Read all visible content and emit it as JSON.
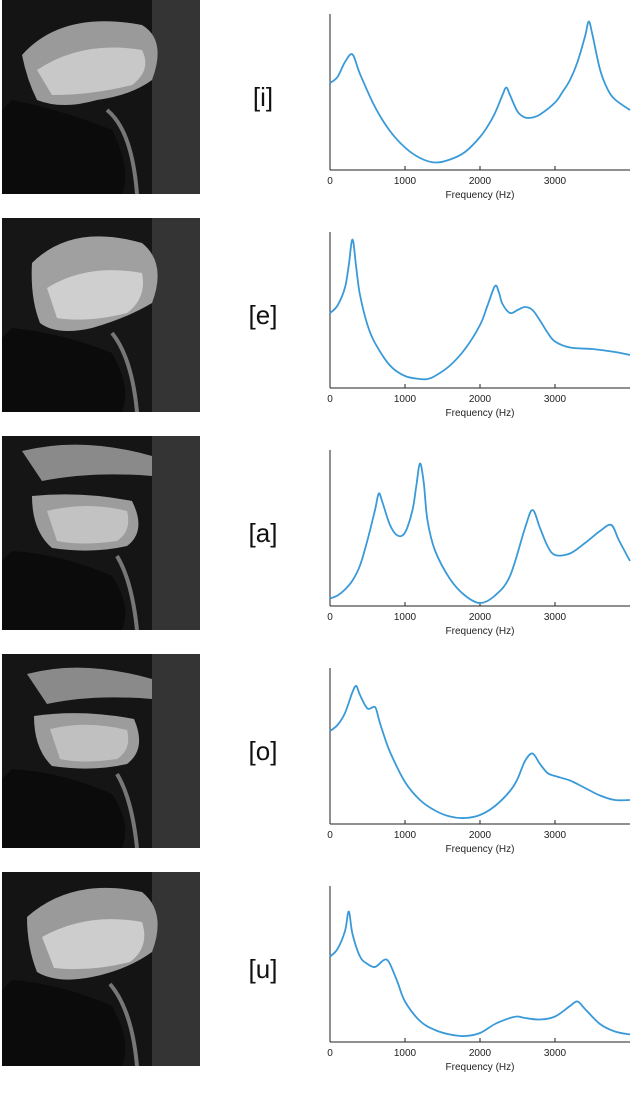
{
  "colors": {
    "line": "#3A9AD9",
    "axis": "#222222"
  },
  "chart_data": [
    {
      "type": "line",
      "vowel": "[i]",
      "xlabel": "Frequency (Hz)",
      "xlim": [
        0,
        4000
      ],
      "xticks": [
        0,
        1000,
        2000,
        3000
      ],
      "x": [
        0,
        100,
        200,
        300,
        400,
        600,
        800,
        1000,
        1200,
        1400,
        1600,
        1800,
        2000,
        2100,
        2200,
        2300,
        2350,
        2400,
        2500,
        2600,
        2700,
        2800,
        3000,
        3100,
        3200,
        3300,
        3400,
        3450,
        3500,
        3600,
        3700,
        3800,
        4000
      ],
      "y": [
        0.56,
        0.6,
        0.7,
        0.75,
        0.62,
        0.4,
        0.24,
        0.13,
        0.06,
        0.03,
        0.05,
        0.1,
        0.2,
        0.27,
        0.36,
        0.48,
        0.53,
        0.48,
        0.37,
        0.33,
        0.33,
        0.35,
        0.43,
        0.5,
        0.58,
        0.7,
        0.87,
        0.97,
        0.88,
        0.65,
        0.52,
        0.45,
        0.38
      ]
    },
    {
      "type": "line",
      "vowel": "[e]",
      "xlabel": "Frequency (Hz)",
      "xlim": [
        0,
        4000
      ],
      "xticks": [
        0,
        1000,
        2000,
        3000
      ],
      "x": [
        0,
        100,
        200,
        250,
        300,
        350,
        400,
        500,
        600,
        800,
        1000,
        1200,
        1300,
        1400,
        1600,
        1800,
        2000,
        2100,
        2200,
        2250,
        2300,
        2400,
        2500,
        2600,
        2700,
        2800,
        2900,
        3000,
        3200,
        3500,
        3800,
        4000
      ],
      "y": [
        0.48,
        0.53,
        0.65,
        0.8,
        0.97,
        0.78,
        0.6,
        0.4,
        0.28,
        0.13,
        0.06,
        0.04,
        0.04,
        0.06,
        0.13,
        0.24,
        0.4,
        0.53,
        0.66,
        0.62,
        0.54,
        0.48,
        0.5,
        0.52,
        0.5,
        0.43,
        0.35,
        0.29,
        0.25,
        0.24,
        0.22,
        0.2
      ]
    },
    {
      "type": "line",
      "vowel": "[a]",
      "xlabel": "Frequency (Hz)",
      "xlim": [
        0,
        4000
      ],
      "xticks": [
        0,
        1000,
        2000,
        3000
      ],
      "x": [
        0,
        100,
        200,
        300,
        400,
        500,
        600,
        650,
        700,
        800,
        900,
        1000,
        1100,
        1150,
        1200,
        1250,
        1300,
        1400,
        1600,
        1800,
        2000,
        2200,
        2400,
        2600,
        2700,
        2800,
        2900,
        3000,
        3200,
        3400,
        3600,
        3750,
        3850,
        4000
      ],
      "y": [
        0.03,
        0.05,
        0.09,
        0.15,
        0.25,
        0.42,
        0.62,
        0.73,
        0.67,
        0.52,
        0.45,
        0.47,
        0.62,
        0.78,
        0.93,
        0.8,
        0.55,
        0.35,
        0.16,
        0.05,
        0.0,
        0.05,
        0.18,
        0.5,
        0.62,
        0.5,
        0.38,
        0.32,
        0.33,
        0.4,
        0.48,
        0.52,
        0.42,
        0.28
      ]
    },
    {
      "type": "line",
      "vowel": "[o]",
      "xlabel": "Frequency (Hz)",
      "xlim": [
        0,
        4000
      ],
      "xticks": [
        0,
        1000,
        2000,
        3000
      ],
      "x": [
        0,
        100,
        200,
        300,
        350,
        400,
        500,
        600,
        650,
        700,
        800,
        1000,
        1200,
        1400,
        1600,
        1800,
        2000,
        2200,
        2400,
        2500,
        2600,
        2700,
        2800,
        2900,
        3000,
        3200,
        3400,
        3600,
        3800,
        4000
      ],
      "y": [
        0.6,
        0.64,
        0.72,
        0.86,
        0.9,
        0.84,
        0.75,
        0.76,
        0.68,
        0.6,
        0.46,
        0.26,
        0.14,
        0.07,
        0.03,
        0.02,
        0.04,
        0.1,
        0.2,
        0.28,
        0.4,
        0.45,
        0.38,
        0.32,
        0.3,
        0.27,
        0.22,
        0.17,
        0.14,
        0.14
      ]
    },
    {
      "type": "line",
      "vowel": "[u]",
      "xlabel": "Frequency (Hz)",
      "xlim": [
        0,
        4000
      ],
      "xticks": [
        0,
        1000,
        2000,
        3000
      ],
      "x": [
        0,
        100,
        200,
        250,
        300,
        400,
        500,
        600,
        700,
        750,
        800,
        900,
        1000,
        1200,
        1400,
        1600,
        1800,
        2000,
        2200,
        2400,
        2500,
        2600,
        2800,
        3000,
        3200,
        3300,
        3400,
        3600,
        3800,
        4000
      ],
      "y": [
        0.55,
        0.6,
        0.72,
        0.85,
        0.7,
        0.55,
        0.5,
        0.48,
        0.52,
        0.53,
        0.5,
        0.38,
        0.25,
        0.12,
        0.06,
        0.03,
        0.02,
        0.04,
        0.1,
        0.14,
        0.15,
        0.14,
        0.13,
        0.15,
        0.22,
        0.25,
        0.2,
        0.1,
        0.05,
        0.03
      ]
    }
  ]
}
